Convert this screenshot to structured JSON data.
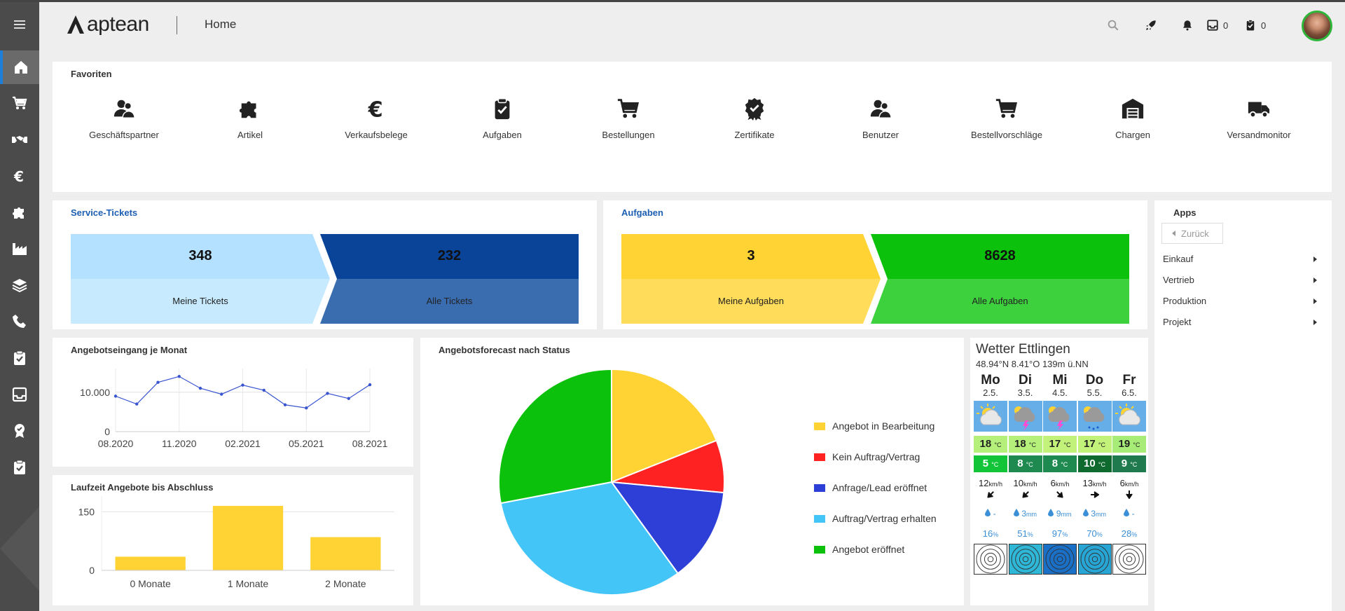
{
  "header": {
    "logo_text": "aptean",
    "page_title": "Home",
    "messages_count": "0",
    "tasks_count": "0",
    "icons": [
      "menu-icon",
      "search-icon",
      "rocket-icon",
      "bell-icon",
      "inbox-icon",
      "clipboard-check-icon"
    ]
  },
  "sidebar": {
    "items": [
      {
        "name": "home",
        "icon": "home-icon",
        "active": true
      },
      {
        "name": "sales",
        "icon": "cart-icon"
      },
      {
        "name": "partners",
        "icon": "handshake-icon"
      },
      {
        "name": "finance",
        "icon": "euro-icon"
      },
      {
        "name": "articles",
        "icon": "puzzle-icon"
      },
      {
        "name": "production",
        "icon": "factory-icon"
      },
      {
        "name": "layers",
        "icon": "layers-icon"
      },
      {
        "name": "phone",
        "icon": "phone-icon"
      },
      {
        "name": "tasks",
        "icon": "clipboard-check-icon"
      },
      {
        "name": "inbox",
        "icon": "inbox-icon"
      },
      {
        "name": "certificates",
        "icon": "badge-icon"
      },
      {
        "name": "clipboard",
        "icon": "clipboard-icon"
      }
    ]
  },
  "favorites": {
    "title": "Favoriten",
    "items": [
      {
        "label": "Geschäftspartner",
        "icon": "users-icon"
      },
      {
        "label": "Artikel",
        "icon": "puzzle-icon"
      },
      {
        "label": "Verkaufsbelege",
        "icon": "euro-icon"
      },
      {
        "label": "Aufgaben",
        "icon": "clipboard-check-icon"
      },
      {
        "label": "Bestellungen",
        "icon": "cart-icon"
      },
      {
        "label": "Zertifikate",
        "icon": "certificate-icon"
      },
      {
        "label": "Benutzer",
        "icon": "users-icon"
      },
      {
        "label": "Bestellvorschläge",
        "icon": "cart-icon"
      },
      {
        "label": "Chargen",
        "icon": "warehouse-icon"
      },
      {
        "label": "Versandmonitor",
        "icon": "truck-icon"
      }
    ]
  },
  "service_tickets": {
    "title": "Service-Tickets",
    "mine": {
      "value": "348",
      "label": "Meine Tickets"
    },
    "all": {
      "value": "232",
      "label": "Alle Tickets"
    }
  },
  "tasks": {
    "title": "Aufgaben",
    "mine": {
      "value": "3",
      "label": "Meine Aufgaben"
    },
    "all": {
      "value": "8628",
      "label": "Alle Aufgaben"
    }
  },
  "apps": {
    "title": "Apps",
    "back_label": "Zurück",
    "items": [
      "Einkauf",
      "Vertrieb",
      "Produktion",
      "Projekt"
    ]
  },
  "chart_line_title": "Angebotseingang je Monat",
  "chart_bar_title": "Laufzeit Angebote bis Abschluss",
  "chart_pie_title": "Angebotsforecast nach Status",
  "chart_data": [
    {
      "type": "line",
      "title": "Angebotseingang je Monat",
      "x": [
        "08.2020",
        "09.2020",
        "10.2020",
        "11.2020",
        "12.2020",
        "01.2021",
        "02.2021",
        "03.2021",
        "04.2021",
        "05.2021",
        "06.2021",
        "07.2021",
        "08.2021"
      ],
      "values": [
        9000,
        7000,
        12500,
        14000,
        11000,
        9500,
        11800,
        10500,
        6800,
        6000,
        9700,
        8400,
        11900
      ],
      "xticks": [
        "08.2020",
        "11.2020",
        "02.2021",
        "05.2021",
        "08.2021"
      ],
      "yticks": [
        "0",
        "10.000"
      ],
      "ylim": [
        0,
        16000
      ],
      "color": "#3a55d0",
      "grid": true
    },
    {
      "type": "bar",
      "title": "Laufzeit Angebote bis Abschluss",
      "categories": [
        "0 Monate",
        "1 Monate",
        "2 Monate"
      ],
      "values": [
        35,
        165,
        85
      ],
      "yticks": [
        "0",
        "150"
      ],
      "ylim": [
        0,
        190
      ],
      "color": "#ffd333",
      "grid": true
    },
    {
      "type": "pie",
      "title": "Angebotsforecast nach Status",
      "legend_position": "right",
      "slices": [
        {
          "label": "Angebot in Bearbeitung",
          "value": 19,
          "color": "#ffd333"
        },
        {
          "label": "Kein Auftrag/Vertrag",
          "value": 7.5,
          "color": "#ff2222"
        },
        {
          "label": "Anfrage/Lead eröffnet",
          "value": 13.5,
          "color": "#2d3fd6"
        },
        {
          "label": "Auftrag/Vertrag erhalten",
          "value": 32,
          "color": "#44c5f7"
        },
        {
          "label": "Angebot eröffnet",
          "value": 28,
          "color": "#0bc10b"
        }
      ]
    }
  ],
  "weather": {
    "title": "Wetter Ettlingen",
    "subtitle": "48.94°N 8.41°O 139m ü.NN",
    "temp_unit": "°C",
    "wind_unit": "km/h",
    "days": [
      {
        "day": "Mo",
        "date": "2.5.",
        "icon": "sun-cloud-icon",
        "high": "18",
        "low": "5",
        "wind": "12",
        "wind_dir": "sw",
        "rain": "-",
        "rain_unit": "",
        "prob": "16",
        "high_color": "#b5f07a",
        "low_color": "#12c437"
      },
      {
        "day": "Di",
        "date": "3.5.",
        "icon": "thunderstorm-icon",
        "high": "18",
        "low": "8",
        "wind": "10",
        "wind_dir": "sw",
        "rain": "3",
        "rain_unit": "mm",
        "prob": "51",
        "high_color": "#b5f07a",
        "low_color": "#1f8a4f"
      },
      {
        "day": "Mi",
        "date": "4.5.",
        "icon": "thunderstorm-icon",
        "high": "17",
        "low": "8",
        "wind": "6",
        "wind_dir": "se",
        "rain": "9",
        "rain_unit": "mm",
        "prob": "97",
        "high_color": "#c3f27a",
        "low_color": "#1f8a4f"
      },
      {
        "day": "Do",
        "date": "5.5.",
        "icon": "cloud-rain-icon",
        "high": "17",
        "low": "10",
        "wind": "13",
        "wind_dir": "e",
        "rain": "3",
        "rain_unit": "mm",
        "prob": "70",
        "high_color": "#c3f27a",
        "low_color": "#0f6a2f"
      },
      {
        "day": "Fr",
        "date": "6.5.",
        "icon": "sun-cloud-icon",
        "high": "19",
        "low": "9",
        "wind": "6",
        "wind_dir": "s",
        "rain": "-",
        "rain_unit": "",
        "prob": "28",
        "high_color": "#a8ec78",
        "low_color": "#1f7a4d"
      }
    ]
  }
}
